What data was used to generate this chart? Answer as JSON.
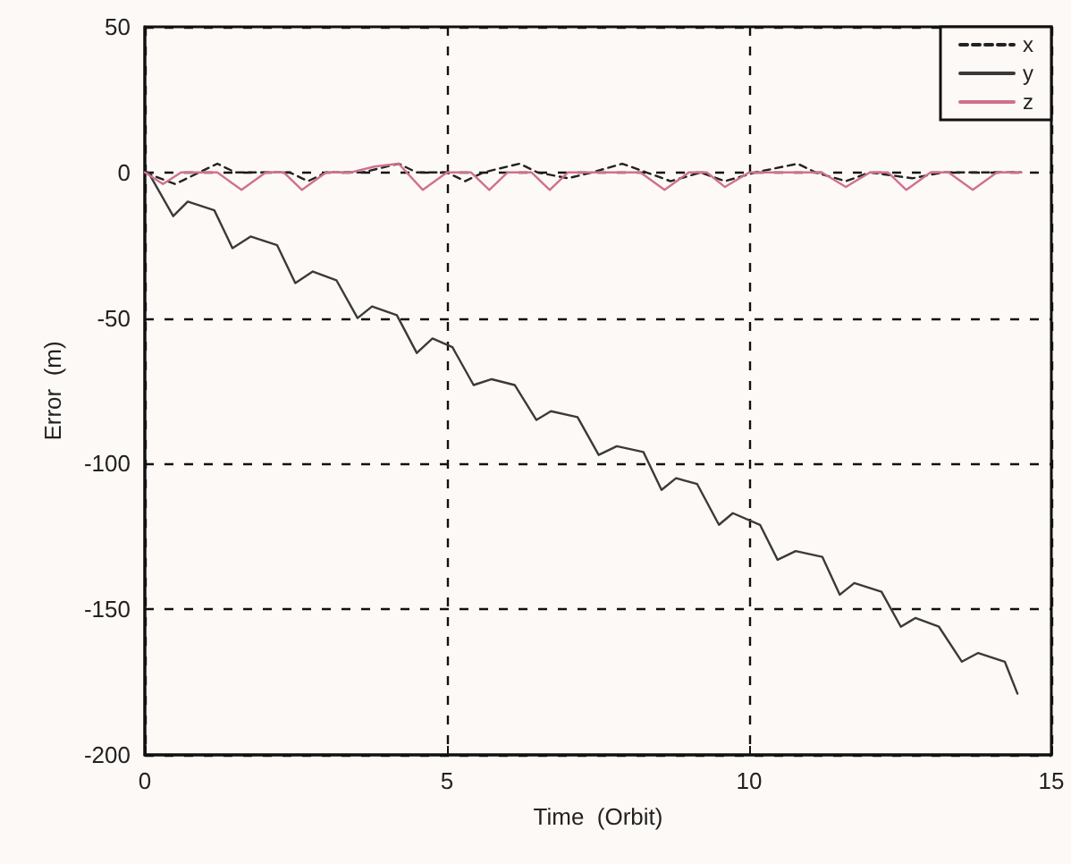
{
  "chart_data": {
    "type": "line",
    "xlabel": "Time  (Orbit)",
    "ylabel": "Error  (m)",
    "xlim": [
      0,
      15
    ],
    "xticks": [
      0,
      5,
      10,
      15
    ],
    "ylim": [
      -200,
      50
    ],
    "yticks": [
      -200,
      -150,
      -100,
      -50,
      0,
      50
    ],
    "grid": true,
    "legend": "top right",
    "marker": "none",
    "series": [
      {
        "name": "x",
        "color": "#222222",
        "line_style": "dashed",
        "x": [
          0,
          0.5,
          0.9,
          1.2,
          1.5,
          2.4,
          2.7,
          3.0,
          3.6,
          4.2,
          4.5,
          5.0,
          5.3,
          5.6,
          6.2,
          6.5,
          7.0,
          7.4,
          7.9,
          8.3,
          8.7,
          9.2,
          9.6,
          10.1,
          10.8,
          11.1,
          11.6,
          12.0,
          12.7,
          13.2,
          14.5
        ],
        "values": [
          0,
          -4,
          0,
          3,
          0,
          0,
          -3,
          0,
          0,
          3,
          0,
          0,
          -3,
          0,
          3,
          0,
          -2,
          0,
          3,
          0,
          -3,
          0,
          -3,
          0,
          3,
          0,
          -3,
          0,
          -2,
          0,
          0
        ]
      },
      {
        "name": "y",
        "color": "#3a3a3a",
        "line_style": "solid",
        "x": [
          0,
          0.06,
          0.47,
          0.71,
          1.15,
          1.45,
          1.75,
          2.19,
          2.49,
          2.78,
          3.17,
          3.52,
          3.76,
          4.17,
          4.5,
          4.76,
          5.09,
          5.44,
          5.74,
          6.12,
          6.48,
          6.72,
          7.16,
          7.51,
          7.81,
          8.25,
          8.55,
          8.79,
          9.14,
          9.5,
          9.73,
          10.18,
          10.47,
          10.77,
          11.21,
          11.5,
          11.74,
          12.19,
          12.51,
          12.75,
          13.14,
          13.52,
          13.79,
          14.23,
          14.44
        ],
        "values": [
          0,
          0,
          -15,
          -10,
          -13,
          -26,
          -22,
          -25,
          -38,
          -34,
          -37,
          -50,
          -46,
          -49,
          -62,
          -57,
          -60,
          -73,
          -71,
          -73,
          -85,
          -82,
          -84,
          -97,
          -94,
          -96,
          -109,
          -105,
          -107,
          -121,
          -117,
          -121,
          -133,
          -130,
          -132,
          -145,
          -141,
          -144,
          -156,
          -153,
          -156,
          -168,
          -165,
          -168,
          -179
        ]
      },
      {
        "name": "z",
        "color": "#d07090",
        "line_style": "solid",
        "x": [
          0,
          0.3,
          0.6,
          1.2,
          1.6,
          2.0,
          2.3,
          2.6,
          3.0,
          3.4,
          3.8,
          4.2,
          4.6,
          5.0,
          5.4,
          5.7,
          6.0,
          6.4,
          6.7,
          7.0,
          7.6,
          8.2,
          8.6,
          9.0,
          9.3,
          9.6,
          10.0,
          11.2,
          11.6,
          12.0,
          12.3,
          12.6,
          13.0,
          13.3,
          13.7,
          14.1,
          14.5
        ],
        "values": [
          0,
          -4,
          0,
          0,
          -6,
          0,
          0,
          -6,
          0,
          0,
          2,
          3,
          -6,
          0,
          0,
          -6,
          0,
          0,
          -6,
          0,
          0,
          0,
          -6,
          0,
          0,
          -5,
          0,
          0,
          -5,
          0,
          0,
          -6,
          0,
          0,
          -6,
          0,
          0
        ]
      }
    ]
  }
}
